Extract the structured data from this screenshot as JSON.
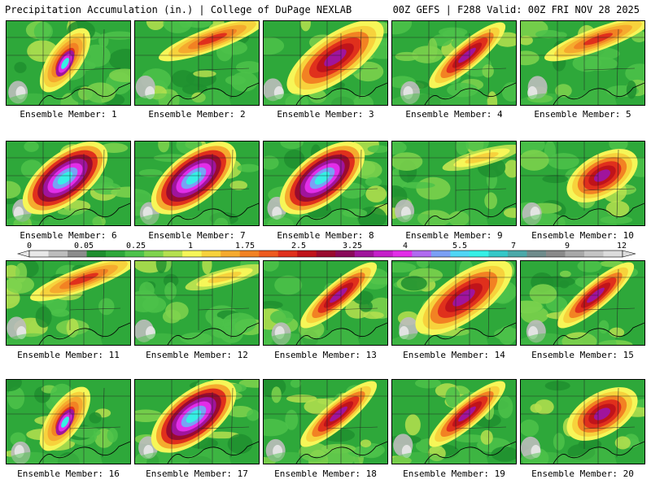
{
  "header": {
    "left": "Precipitation Accumulation (in.) | College of DuPage NEXLAB",
    "right": "00Z GEFS | F288 Valid: 00Z FRI NOV 28 2025"
  },
  "colorbar": {
    "labels": [
      "0",
      "0.05",
      "0.25",
      "1",
      "1.75",
      "2.5",
      "3.25",
      "4",
      "5.5",
      "7",
      "9",
      "12"
    ],
    "colors": [
      "#e8e8e8",
      "#bdbdbd",
      "#8c8c8c",
      "#1f8f2f",
      "#2ea83a",
      "#4cc24a",
      "#7fd34d",
      "#b5e04f",
      "#f6f658",
      "#f7d23c",
      "#f5aa2e",
      "#f28223",
      "#ee5a1f",
      "#e0301c",
      "#c0131a",
      "#9a0b2f",
      "#8a0a5a",
      "#a0149c",
      "#c51fca",
      "#e22de8",
      "#b06af0",
      "#7aa0f5",
      "#4fd6f5",
      "#36f0e6",
      "#34c8c8",
      "#4aa9a9",
      "#6f8c8c",
      "#8a8a8a",
      "#a8a8a8",
      "#c4c4c4",
      "#dcdcdc"
    ]
  },
  "panels": [
    {
      "caption": "Ensemble Member: 1",
      "pattern": "sw-core"
    },
    {
      "caption": "Ensemble Member: 2",
      "pattern": "north"
    },
    {
      "caption": "Ensemble Member: 3",
      "pattern": "broad"
    },
    {
      "caption": "Ensemble Member: 4",
      "pattern": "band"
    },
    {
      "caption": "Ensemble Member: 5",
      "pattern": "north"
    },
    {
      "caption": "Ensemble Member: 6",
      "pattern": "heavy"
    },
    {
      "caption": "Ensemble Member: 7",
      "pattern": "heavy"
    },
    {
      "caption": "Ensemble Member: 8",
      "pattern": "heavy"
    },
    {
      "caption": "Ensemble Member: 9",
      "pattern": "light"
    },
    {
      "caption": "Ensemble Member: 10",
      "pattern": "east"
    },
    {
      "caption": "Ensemble Member: 11",
      "pattern": "north"
    },
    {
      "caption": "Ensemble Member: 12",
      "pattern": "light"
    },
    {
      "caption": "Ensemble Member: 13",
      "pattern": "band"
    },
    {
      "caption": "Ensemble Member: 14",
      "pattern": "broad"
    },
    {
      "caption": "Ensemble Member: 15",
      "pattern": "band"
    },
    {
      "caption": "Ensemble Member: 16",
      "pattern": "sw-core"
    },
    {
      "caption": "Ensemble Member: 17",
      "pattern": "heavy"
    },
    {
      "caption": "Ensemble Member: 18",
      "pattern": "band"
    },
    {
      "caption": "Ensemble Member: 19",
      "pattern": "band"
    },
    {
      "caption": "Ensemble Member: 20",
      "pattern": "east"
    }
  ]
}
